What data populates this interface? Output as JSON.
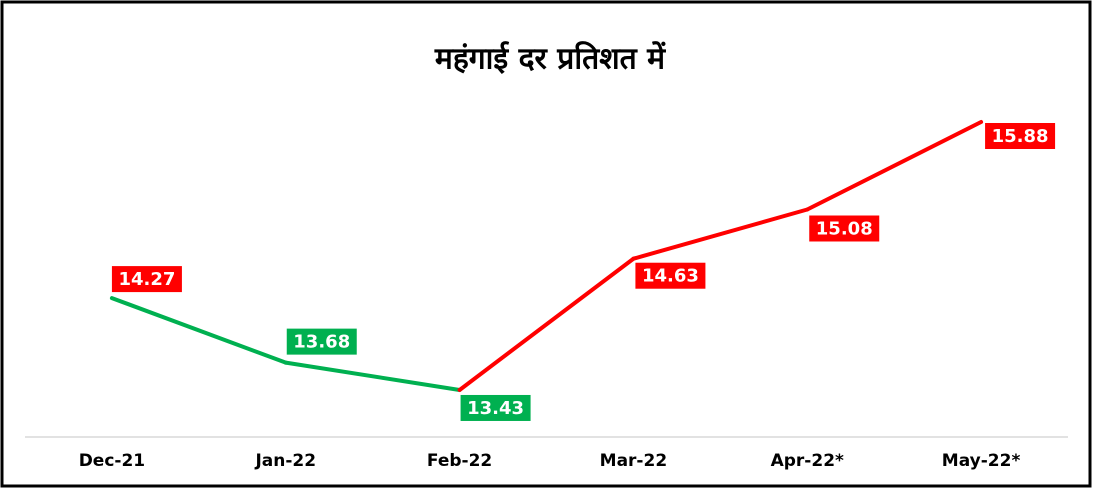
{
  "chart_data": {
    "type": "line",
    "title": "महंगाई दर प्रतिशत में",
    "categories": [
      "Dec-21",
      "Jan-22",
      "Feb-22",
      "Mar-22",
      "Apr-22*",
      "May-22*"
    ],
    "values": [
      14.27,
      13.68,
      13.43,
      14.63,
      15.08,
      15.88
    ],
    "segment_colors": [
      "#00b050",
      "#00b050",
      "#ff0000",
      "#ff0000",
      "#ff0000"
    ],
    "label_colors": [
      "#ff0000",
      "#00b050",
      "#00b050",
      "#ff0000",
      "#ff0000",
      "#ff0000"
    ],
    "ylim": [
      13,
      16.2
    ]
  }
}
